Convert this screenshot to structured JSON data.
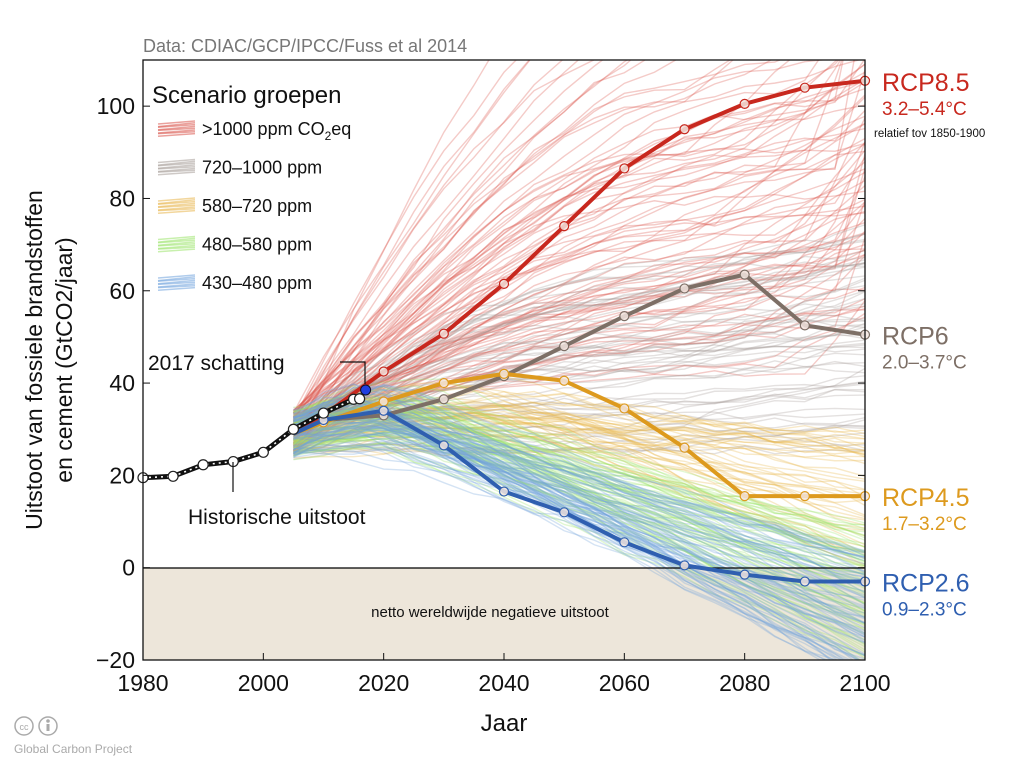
{
  "chart_data": {
    "type": "line",
    "source": "Data: CDIAC/GCP/IPCC/Fuss et al 2014",
    "xlabel": "Jaar",
    "ylabel_line1": "Uitstoot van fossiele brandstoffen",
    "ylabel_line2": "en cement (GtCO2/jaar)",
    "xlim": [
      1980,
      2100
    ],
    "ylim": [
      -20,
      110
    ],
    "xticks": [
      1980,
      2000,
      2020,
      2040,
      2060,
      2080,
      2100
    ],
    "yticks": [
      -20,
      0,
      20,
      40,
      60,
      80,
      100
    ],
    "ytick_labels": [
      "−20",
      "0",
      "20",
      "40",
      "60",
      "80",
      "100"
    ],
    "legend": {
      "title": "Scenario groepen",
      "placement": "top-left",
      "entries": [
        {
          "label": ">1000 ppm CO",
          "sub": "2",
          "suffix": "eq",
          "color": "#d9534a"
        },
        {
          "label": "720–1000 ppm",
          "color": "#a59d98"
        },
        {
          "label": "580–720 ppm",
          "color": "#e8b54a"
        },
        {
          "label": "480–580 ppm",
          "color": "#9be36a"
        },
        {
          "label": "430–480 ppm",
          "color": "#6fa3dc"
        }
      ]
    },
    "historical": {
      "name": "Historische uitstoot",
      "x": [
        1980,
        1985,
        1990,
        1995,
        2000,
        2005,
        2010,
        2015,
        2016
      ],
      "y": [
        19.5,
        19.8,
        22.3,
        23.0,
        25.0,
        30.0,
        33.5,
        36.5,
        36.6
      ]
    },
    "estimate": {
      "label": "2017 schatting",
      "x": 2017,
      "y": 38.5,
      "color": "#1f3fe0"
    },
    "series": [
      {
        "name": "RCP8.5",
        "range": "3.2–5.4°C",
        "note": "relatief tov 1850-1900",
        "color": "#c8281e",
        "x": [
          2005,
          2010,
          2020,
          2030,
          2040,
          2050,
          2060,
          2070,
          2080,
          2090,
          2100
        ],
        "y": [
          29,
          33,
          42.5,
          50.7,
          61.5,
          74,
          86.5,
          95,
          100.5,
          104,
          105.5
        ]
      },
      {
        "name": "RCP6",
        "range": "2.0–3.7°C",
        "color": "#7d6f66",
        "x": [
          2005,
          2010,
          2020,
          2030,
          2040,
          2050,
          2060,
          2070,
          2080,
          2090,
          2100
        ],
        "y": [
          29,
          32,
          33,
          36.5,
          41.5,
          48,
          54.5,
          60.5,
          63.5,
          52.5,
          50.5
        ]
      },
      {
        "name": "RCP4.5",
        "range": "1.7–3.2°C",
        "color": "#dd9a1e",
        "x": [
          2005,
          2010,
          2020,
          2030,
          2040,
          2050,
          2060,
          2070,
          2080,
          2090,
          2100
        ],
        "y": [
          29,
          31.5,
          36,
          40,
          42,
          40.5,
          34.5,
          26,
          15.5,
          15.5,
          15.5
        ]
      },
      {
        "name": "RCP2.6",
        "range": "0.9–2.3°C",
        "color": "#2f5fb0",
        "x": [
          2005,
          2010,
          2020,
          2030,
          2040,
          2050,
          2060,
          2070,
          2080,
          2090,
          2100
        ],
        "y": [
          29,
          32,
          34,
          26.5,
          16.5,
          12,
          5.5,
          0.5,
          -1.5,
          -3,
          -3
        ]
      }
    ],
    "negative_region_label": "netto wereldwijde negatieve uitstoot",
    "negative_region_color": "#ede6da"
  },
  "credit": "Global Carbon Project"
}
